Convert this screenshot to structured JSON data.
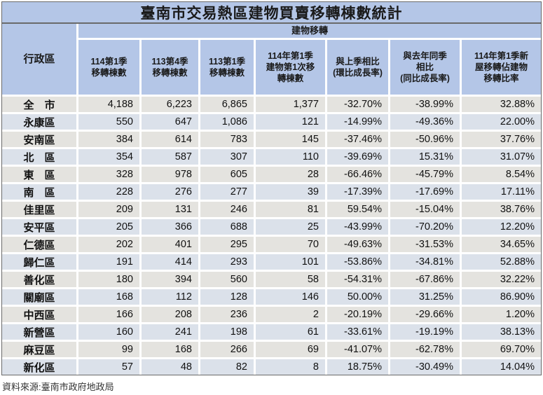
{
  "chart_data": {
    "type": "table",
    "title": "臺南市交易熱區建物買賣移轉棟數統計",
    "corner_header": "行政區",
    "group_header": "建物移轉",
    "columns": [
      "114第1季\n移轉棟數",
      "113第4季\n移轉棟數",
      "113第1季\n移轉棟數",
      "114年第1季\n建物第1次移\n轉棟數",
      "與上季相比\n(環比成長率)",
      "與去年同季\n相比\n(同比成長率)",
      "114年第1季新\n屋移轉佔建物\n移轉比率"
    ],
    "rows": [
      {
        "region": "全　市",
        "values": [
          "4,188",
          "6,223",
          "6,865",
          "1,377",
          "-32.70%",
          "-38.99%",
          "32.88%"
        ]
      },
      {
        "region": "永康區",
        "values": [
          "550",
          "647",
          "1,086",
          "121",
          "-14.99%",
          "-49.36%",
          "22.00%"
        ]
      },
      {
        "region": "安南區",
        "values": [
          "384",
          "614",
          "783",
          "145",
          "-37.46%",
          "-50.96%",
          "37.76%"
        ]
      },
      {
        "region": "北　區",
        "values": [
          "354",
          "587",
          "307",
          "110",
          "-39.69%",
          "15.31%",
          "31.07%"
        ]
      },
      {
        "region": "東　區",
        "values": [
          "328",
          "978",
          "605",
          "28",
          "-66.46%",
          "-45.79%",
          "8.54%"
        ]
      },
      {
        "region": "南　區",
        "values": [
          "228",
          "276",
          "277",
          "39",
          "-17.39%",
          "-17.69%",
          "17.11%"
        ]
      },
      {
        "region": "佳里區",
        "values": [
          "209",
          "131",
          "246",
          "81",
          "59.54%",
          "-15.04%",
          "38.76%"
        ]
      },
      {
        "region": "安平區",
        "values": [
          "205",
          "366",
          "688",
          "25",
          "-43.99%",
          "-70.20%",
          "12.20%"
        ]
      },
      {
        "region": "仁德區",
        "values": [
          "202",
          "401",
          "295",
          "70",
          "-49.63%",
          "-31.53%",
          "34.65%"
        ]
      },
      {
        "region": "歸仁區",
        "values": [
          "191",
          "414",
          "293",
          "101",
          "-53.86%",
          "-34.81%",
          "52.88%"
        ]
      },
      {
        "region": "善化區",
        "values": [
          "180",
          "394",
          "560",
          "58",
          "-54.31%",
          "-67.86%",
          "32.22%"
        ]
      },
      {
        "region": "關廟區",
        "values": [
          "168",
          "112",
          "128",
          "146",
          "50.00%",
          "31.25%",
          "86.90%"
        ]
      },
      {
        "region": "中西區",
        "values": [
          "166",
          "208",
          "236",
          "2",
          "-20.19%",
          "-29.66%",
          "1.20%"
        ]
      },
      {
        "region": "新營區",
        "values": [
          "160",
          "241",
          "198",
          "61",
          "-33.61%",
          "-19.19%",
          "38.13%"
        ]
      },
      {
        "region": "麻豆區",
        "values": [
          "99",
          "168",
          "266",
          "69",
          "-41.07%",
          "-62.78%",
          "69.70%"
        ]
      },
      {
        "region": "新化區",
        "values": [
          "57",
          "48",
          "82",
          "8",
          "18.75%",
          "-30.49%",
          "14.04%"
        ]
      }
    ],
    "source": "資料來源:臺南市政府地政局"
  },
  "colors": {
    "header_bg": "#B4C6E7",
    "row_alt_gray": "#E4E3DF",
    "row_alt_blue": "#DBE1EA",
    "border": "#6A6A6A"
  }
}
